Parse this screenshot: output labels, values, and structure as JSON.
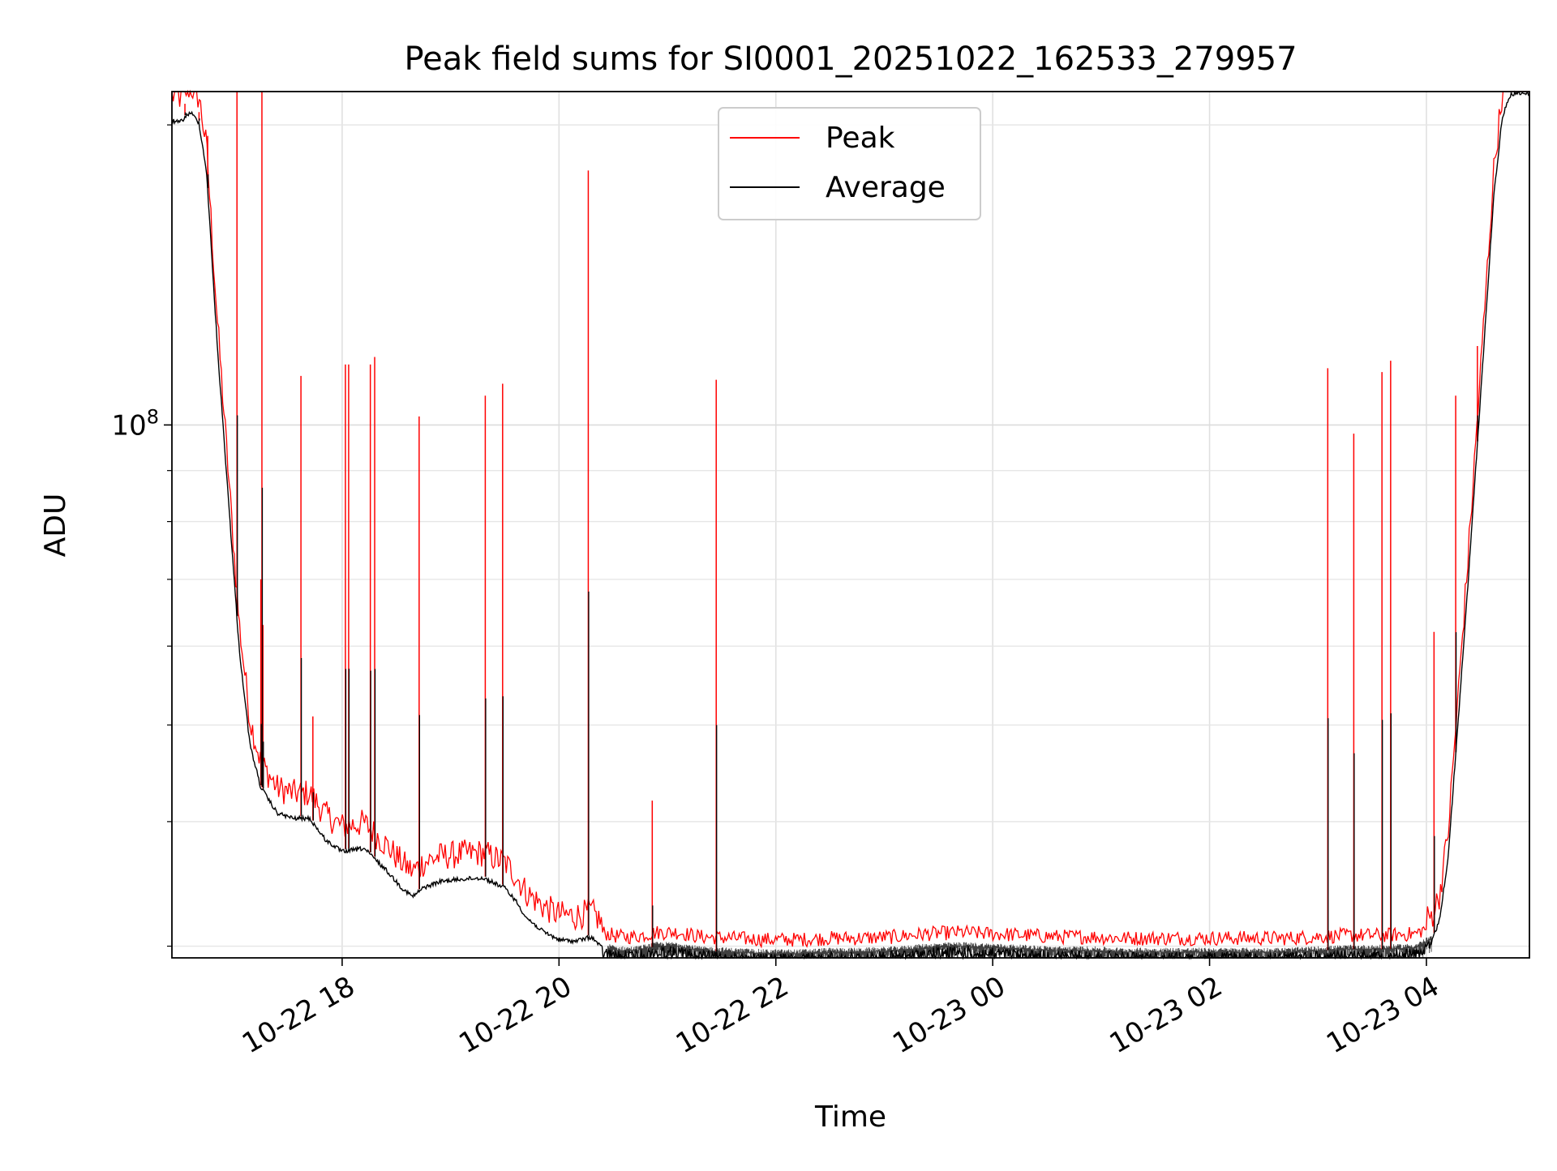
{
  "chart_data": {
    "type": "line",
    "title": "Peak field sums for SI0001_20251022_162533_279957",
    "xlabel": "Time",
    "ylabel": "ADU",
    "yscale": "log",
    "grid": true,
    "legend_position": "top-center",
    "x_range_hours": [
      16.43,
      28.95
    ],
    "y_range": [
      29200000.0,
      216000000.0
    ],
    "x_ticks": [
      {
        "hour": 18,
        "label": "10-22 18"
      },
      {
        "hour": 20,
        "label": "10-22 20"
      },
      {
        "hour": 22,
        "label": "10-22 22"
      },
      {
        "hour": 24,
        "label": "10-23 00"
      },
      {
        "hour": 26,
        "label": "10-23 02"
      },
      {
        "hour": 28,
        "label": "10-23 04"
      }
    ],
    "y_major_ticks": [
      {
        "value": 100000000.0,
        "base": "10",
        "exp": "8"
      }
    ],
    "y_minor_ticks": [
      30000000.0,
      40000000.0,
      50000000.0,
      60000000.0,
      70000000.0,
      80000000.0,
      90000000.0,
      200000000.0
    ],
    "series": [
      {
        "name": "Peak",
        "color": "#ff0000",
        "spikes": [
          {
            "hour": 16.55,
            "value": 210000000.0
          },
          {
            "hour": 16.68,
            "value": 206000000.0
          },
          {
            "hour": 16.76,
            "value": 195000000.0
          },
          {
            "hour": 17.03,
            "value": 216000000.0
          },
          {
            "hour": 17.25,
            "value": 70000000.0
          },
          {
            "hour": 17.26,
            "value": 216000000.0
          },
          {
            "hour": 17.27,
            "value": 63000000.0
          },
          {
            "hour": 17.62,
            "value": 112000000.0
          },
          {
            "hour": 17.73,
            "value": 51000000.0
          },
          {
            "hour": 18.03,
            "value": 115000000.0
          },
          {
            "hour": 18.06,
            "value": 115000000.0
          },
          {
            "hour": 18.26,
            "value": 115000000.0
          },
          {
            "hour": 18.3,
            "value": 117000000.0
          },
          {
            "hour": 18.71,
            "value": 102000000.0
          },
          {
            "hour": 19.32,
            "value": 107000000.0
          },
          {
            "hour": 19.48,
            "value": 110000000.0
          },
          {
            "hour": 20.27,
            "value": 180000000.0
          },
          {
            "hour": 20.86,
            "value": 42000000.0
          },
          {
            "hour": 21.45,
            "value": 111000000.0
          },
          {
            "hour": 27.09,
            "value": 114000000.0
          },
          {
            "hour": 27.33,
            "value": 98000000.0
          },
          {
            "hour": 27.59,
            "value": 113000000.0
          },
          {
            "hour": 27.67,
            "value": 116000000.0
          },
          {
            "hour": 28.07,
            "value": 62000000.0
          },
          {
            "hour": 28.27,
            "value": 107000000.0
          },
          {
            "hour": 28.47,
            "value": 120000000.0
          }
        ]
      },
      {
        "name": "Average",
        "color": "#000000",
        "points": [
          [
            16.43,
            203000000.0
          ],
          [
            16.5,
            202000000.0
          ],
          [
            16.6,
            207000000.0
          ],
          [
            16.68,
            202000000.0
          ],
          [
            16.75,
            180000000.0
          ],
          [
            16.85,
            120000000.0
          ],
          [
            16.95,
            85000000.0
          ],
          [
            17.05,
            60000000.0
          ],
          [
            17.15,
            48000000.0
          ],
          [
            17.25,
            43500000.0
          ],
          [
            17.4,
            41000000.0
          ],
          [
            17.55,
            40500000.0
          ],
          [
            17.7,
            40500000.0
          ],
          [
            17.85,
            38500000.0
          ],
          [
            18.0,
            37500000.0
          ],
          [
            18.2,
            37800000.0
          ],
          [
            18.4,
            36000000.0
          ],
          [
            18.55,
            34500000.0
          ],
          [
            18.65,
            33800000.0
          ],
          [
            18.75,
            34500000.0
          ],
          [
            18.9,
            35000000.0
          ],
          [
            19.1,
            35200000.0
          ],
          [
            19.3,
            35300000.0
          ],
          [
            19.5,
            34500000.0
          ],
          [
            19.6,
            33500000.0
          ],
          [
            19.7,
            32200000.0
          ],
          [
            19.85,
            31200000.0
          ],
          [
            20.0,
            30600000.0
          ],
          [
            20.15,
            30500000.0
          ],
          [
            20.3,
            30800000.0
          ],
          [
            20.4,
            30000000.0
          ],
          [
            20.55,
            29700000.0
          ],
          [
            20.7,
            29700000.0
          ],
          [
            20.9,
            30000000.0
          ],
          [
            21.1,
            30000000.0
          ],
          [
            21.3,
            29700000.0
          ],
          [
            21.6,
            29600000.0
          ],
          [
            21.9,
            29500000.0
          ],
          [
            22.2,
            29500000.0
          ],
          [
            22.5,
            29600000.0
          ],
          [
            22.8,
            29600000.0
          ],
          [
            23.1,
            29700000.0
          ],
          [
            23.4,
            29900000.0
          ],
          [
            23.7,
            30000000.0
          ],
          [
            24.0,
            29900000.0
          ],
          [
            24.3,
            29800000.0
          ],
          [
            24.6,
            29700000.0
          ],
          [
            24.9,
            29700000.0
          ],
          [
            25.2,
            29600000.0
          ],
          [
            25.5,
            29600000.0
          ],
          [
            25.8,
            29600000.0
          ],
          [
            26.1,
            29600000.0
          ],
          [
            26.4,
            29600000.0
          ],
          [
            26.7,
            29600000.0
          ],
          [
            27.0,
            29700000.0
          ],
          [
            27.3,
            29800000.0
          ],
          [
            27.6,
            29800000.0
          ],
          [
            27.9,
            29900000.0
          ],
          [
            28.05,
            30500000.0
          ],
          [
            28.12,
            32000000.0
          ],
          [
            28.2,
            37000000.0
          ],
          [
            28.3,
            52000000.0
          ],
          [
            28.4,
            74000000.0
          ],
          [
            28.48,
            100000000.0
          ],
          [
            28.55,
            130000000.0
          ],
          [
            28.62,
            170000000.0
          ],
          [
            28.7,
            205000000.0
          ],
          [
            28.78,
            216000000.0
          ],
          [
            28.95,
            216000000.0
          ]
        ]
      }
    ]
  }
}
